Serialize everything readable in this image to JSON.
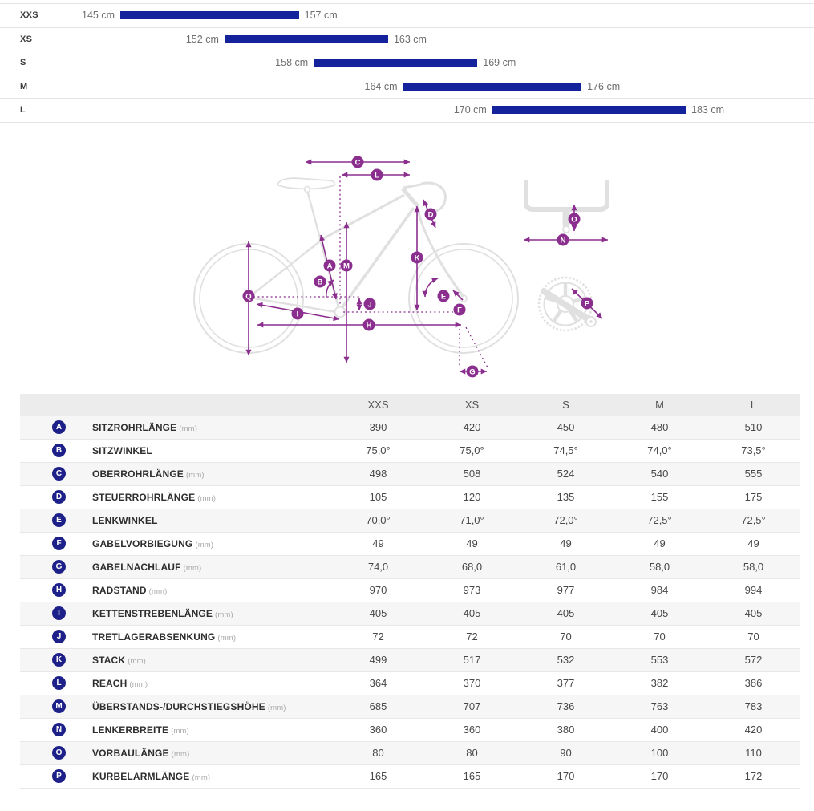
{
  "colors": {
    "bar": "#14239b",
    "badge": "#1d2088",
    "annotation": "#8b2f8f",
    "bike_sketch": "#e0e0e0"
  },
  "chart_data": [
    {
      "type": "bar",
      "title": "Rider height range per frame size",
      "orientation": "horizontal-range",
      "unit": "cm",
      "categories": [
        "XXS",
        "XS",
        "S",
        "M",
        "L"
      ],
      "ranges": [
        [
          145,
          157
        ],
        [
          152,
          163
        ],
        [
          158,
          169
        ],
        [
          164,
          176
        ],
        [
          170,
          183
        ]
      ],
      "range_labels": [
        [
          "145 cm",
          "157 cm"
        ],
        [
          "152 cm",
          "163 cm"
        ],
        [
          "158 cm",
          "169 cm"
        ],
        [
          "164 cm",
          "176 cm"
        ],
        [
          "170 cm",
          "183 cm"
        ]
      ],
      "xlim": [
        145,
        183
      ],
      "grid": false,
      "legend": false
    },
    {
      "type": "table",
      "columns": [
        "XXS",
        "XS",
        "S",
        "M",
        "L"
      ],
      "rows": [
        {
          "id": "A",
          "label": "SITZROHRLÄNGE",
          "unit": "(mm)",
          "values": [
            "390",
            "420",
            "450",
            "480",
            "510"
          ]
        },
        {
          "id": "B",
          "label": "SITZWINKEL",
          "unit": "",
          "values": [
            "75,0°",
            "75,0°",
            "74,5°",
            "74,0°",
            "73,5°"
          ]
        },
        {
          "id": "C",
          "label": "OBERROHRLÄNGE",
          "unit": "(mm)",
          "values": [
            "498",
            "508",
            "524",
            "540",
            "555"
          ]
        },
        {
          "id": "D",
          "label": "STEUERROHRLÄNGE",
          "unit": "(mm)",
          "values": [
            "105",
            "120",
            "135",
            "155",
            "175"
          ]
        },
        {
          "id": "E",
          "label": "LENKWINKEL",
          "unit": "",
          "values": [
            "70,0°",
            "71,0°",
            "72,0°",
            "72,5°",
            "72,5°"
          ]
        },
        {
          "id": "F",
          "label": "GABELVORBIEGUNG",
          "unit": "(mm)",
          "values": [
            "49",
            "49",
            "49",
            "49",
            "49"
          ]
        },
        {
          "id": "G",
          "label": "GABELNACHLAUF",
          "unit": "(mm)",
          "values": [
            "74,0",
            "68,0",
            "61,0",
            "58,0",
            "58,0"
          ]
        },
        {
          "id": "H",
          "label": "RADSTAND",
          "unit": "(mm)",
          "values": [
            "970",
            "973",
            "977",
            "984",
            "994"
          ]
        },
        {
          "id": "I",
          "label": "KETTENSTREBENLÄNGE",
          "unit": "(mm)",
          "values": [
            "405",
            "405",
            "405",
            "405",
            "405"
          ]
        },
        {
          "id": "J",
          "label": "TRETLAGERABSENKUNG",
          "unit": "(mm)",
          "values": [
            "72",
            "72",
            "70",
            "70",
            "70"
          ]
        },
        {
          "id": "K",
          "label": "STACK",
          "unit": "(mm)",
          "values": [
            "499",
            "517",
            "532",
            "553",
            "572"
          ]
        },
        {
          "id": "L",
          "label": "REACH",
          "unit": "(mm)",
          "values": [
            "364",
            "370",
            "377",
            "382",
            "386"
          ]
        },
        {
          "id": "M",
          "label": "ÜBERSTANDS-/DURCHSTIEGSHÖHE",
          "unit": "(mm)",
          "values": [
            "685",
            "707",
            "736",
            "763",
            "783"
          ]
        },
        {
          "id": "N",
          "label": "LENKERBREITE",
          "unit": "(mm)",
          "values": [
            "360",
            "360",
            "380",
            "400",
            "420"
          ]
        },
        {
          "id": "O",
          "label": "VORBAULÄNGE",
          "unit": "(mm)",
          "values": [
            "80",
            "80",
            "90",
            "100",
            "110"
          ]
        },
        {
          "id": "P",
          "label": "KURBELARMLÄNGE",
          "unit": "(mm)",
          "values": [
            "165",
            "165",
            "170",
            "170",
            "172"
          ]
        }
      ]
    }
  ],
  "diagram": {
    "letters": {
      "a": "A",
      "b": "B",
      "c": "C",
      "d": "D",
      "e": "E",
      "f": "F",
      "g": "G",
      "h": "H",
      "i": "I",
      "j": "J",
      "k": "K",
      "l": "L",
      "m": "M",
      "n": "N",
      "o": "O",
      "p": "P",
      "q": "Q"
    }
  }
}
